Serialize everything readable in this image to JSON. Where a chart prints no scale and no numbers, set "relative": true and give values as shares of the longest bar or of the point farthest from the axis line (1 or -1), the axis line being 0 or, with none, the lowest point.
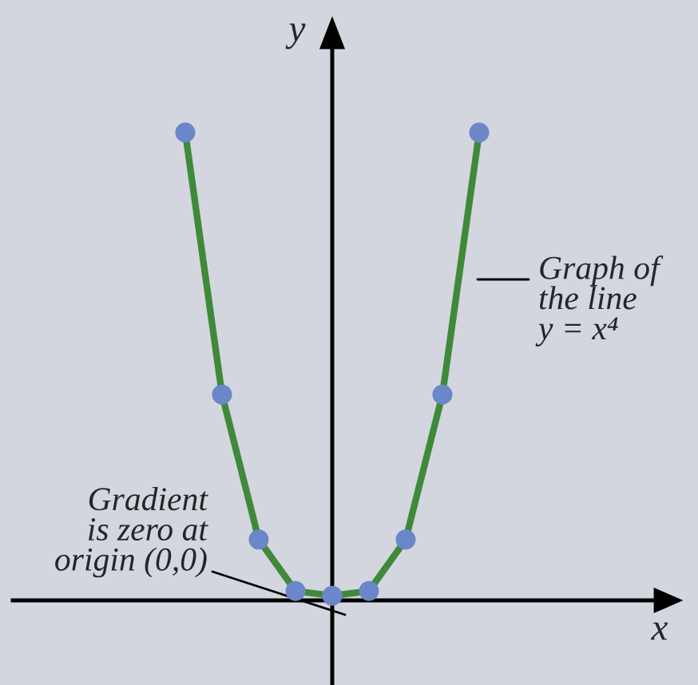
{
  "chart_data": {
    "type": "line",
    "relative": true,
    "xlabel": "x",
    "ylabel": "y",
    "marker": "circle",
    "categories": [
      null,
      null,
      null,
      null,
      null,
      null,
      null,
      null,
      null
    ],
    "series": [
      {
        "color": "#3f8a3a",
        "colors": [
          "#6b86c9",
          "#6b86c9",
          "#6b86c9",
          "#6b86c9",
          "#6b86c9",
          "#6b86c9",
          "#6b86c9",
          "#6b86c9",
          "#6b86c9"
        ],
        "values": [
          1,
          0.44,
          0.13,
          0.02,
          0.01,
          0.02,
          0.13,
          0.44,
          1
        ]
      }
    ],
    "annotations": [
      "Graph of\nthe line\ny = x⁴",
      "Gradient\nis zero at\norigin (0,0)"
    ]
  }
}
